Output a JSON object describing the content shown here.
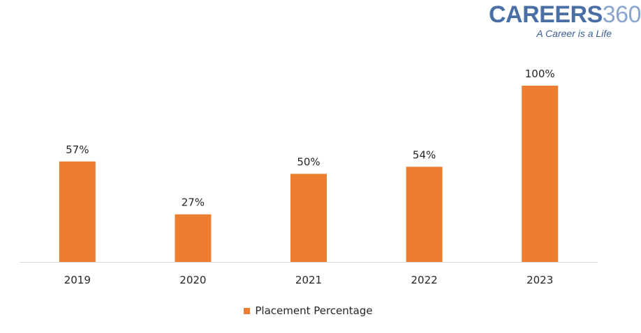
{
  "brand": {
    "name": "CAREERS",
    "number": "360",
    "tagline": "A Career is a Life",
    "color": "#4a6fa5"
  },
  "chart_data": {
    "type": "bar",
    "categories": [
      "2019",
      "2020",
      "2021",
      "2022",
      "2023"
    ],
    "series": [
      {
        "name": "Placement Percentage",
        "values": [
          57,
          27,
          50,
          54,
          100
        ],
        "labels": [
          "57%",
          "27%",
          "50%",
          "54%",
          "100%"
        ],
        "color": "#ed7d31"
      }
    ],
    "title": "",
    "xlabel": "",
    "ylabel": "",
    "ylim": [
      0,
      100
    ],
    "grid": false,
    "legend_position": "bottom"
  },
  "legend": {
    "label": "Placement Percentage"
  }
}
